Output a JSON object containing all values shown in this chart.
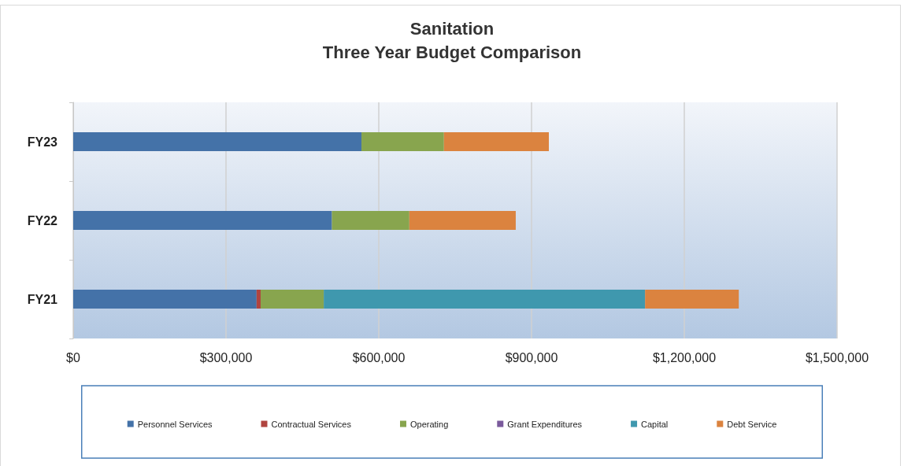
{
  "chart_data": {
    "type": "bar",
    "orientation": "horizontal",
    "stacked": true,
    "title": "Sanitation",
    "subtitle": "Three Year Budget Comparison",
    "categories": [
      "FY23",
      "FY22",
      "FY21"
    ],
    "series": [
      {
        "name": "Personnel Services",
        "color": "#4472a8",
        "values": [
          566000,
          508000,
          360000
        ]
      },
      {
        "name": "Contractual Services",
        "color": "#b0443f",
        "values": [
          0,
          0,
          8000
        ]
      },
      {
        "name": "Operating",
        "color": "#88a54e",
        "values": [
          162000,
          152000,
          124000
        ]
      },
      {
        "name": "Grant Expenditures",
        "color": "#7a5a9c",
        "values": [
          0,
          0,
          0
        ]
      },
      {
        "name": "Capital",
        "color": "#3f98ae",
        "values": [
          0,
          0,
          631000
        ]
      },
      {
        "name": "Debt Service",
        "color": "#db833f",
        "values": [
          206000,
          209000,
          184000
        ]
      }
    ],
    "xlim": [
      0,
      1500000
    ],
    "xticks": [
      {
        "value": 0,
        "label": "$0"
      },
      {
        "value": 300000,
        "label": "$300,000"
      },
      {
        "value": 600000,
        "label": "$600,000"
      },
      {
        "value": 900000,
        "label": "$900,000"
      },
      {
        "value": 1200000,
        "label": "$1,200,000"
      },
      {
        "value": 1500000,
        "label": "$1,500,000"
      }
    ],
    "grid": "x",
    "legend": "bottom"
  }
}
